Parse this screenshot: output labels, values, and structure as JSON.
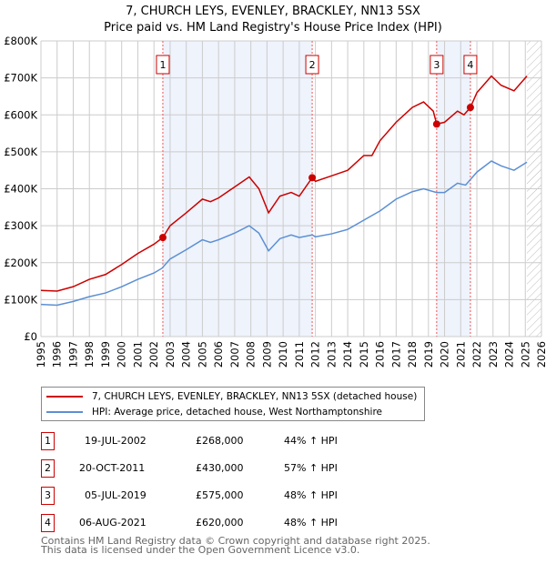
{
  "title": "7, CHURCH LEYS, EVENLEY, BRACKLEY, NN13 5SX",
  "subtitle": "Price paid vs. HM Land Registry's House Price Index (HPI)",
  "chart_data": {
    "type": "line",
    "xlim": [
      1995,
      2026
    ],
    "ylim": [
      0,
      800000
    ],
    "yticks": [
      {
        "v": 0,
        "l": "£0"
      },
      {
        "v": 100000,
        "l": "£100K"
      },
      {
        "v": 200000,
        "l": "£200K"
      },
      {
        "v": 300000,
        "l": "£300K"
      },
      {
        "v": 400000,
        "l": "£400K"
      },
      {
        "v": 500000,
        "l": "£500K"
      },
      {
        "v": 600000,
        "l": "£600K"
      },
      {
        "v": 700000,
        "l": "£700K"
      },
      {
        "v": 800000,
        "l": "£800K"
      }
    ],
    "xticks": [
      "1995",
      "1996",
      "1997",
      "1998",
      "1999",
      "2000",
      "2001",
      "2002",
      "2003",
      "2004",
      "2005",
      "2006",
      "2007",
      "2008",
      "2009",
      "2010",
      "2011",
      "2012",
      "2013",
      "2014",
      "2015",
      "2016",
      "2017",
      "2018",
      "2019",
      "2020",
      "2021",
      "2022",
      "2023",
      "2024",
      "2025",
      "2026"
    ],
    "forecast_from": 2025.1,
    "shaded": [
      [
        2002.55,
        2011.8
      ],
      [
        2019.51,
        2021.6
      ]
    ],
    "series": [
      {
        "name": "7, CHURCH LEYS, EVENLEY, BRACKLEY, NN13 5SX (detached house)",
        "color": "#cc0000",
        "x": [
          1995,
          1996,
          1997,
          1998,
          1999,
          2000,
          2001,
          2002,
          2002.55,
          2003,
          2004,
          2005,
          2005.5,
          2006,
          2007,
          2007.9,
          2008.5,
          2009.1,
          2009.8,
          2010.5,
          2011,
          2011.8,
          2012,
          2013,
          2014,
          2015,
          2015.5,
          2016,
          2017,
          2018,
          2018.7,
          2019.3,
          2019.51,
          2020,
          2020.8,
          2021.2,
          2021.6,
          2022,
          2022.9,
          2023.5,
          2024.3,
          2025.1
        ],
        "y": [
          125000,
          123000,
          135000,
          155000,
          168000,
          195000,
          225000,
          250000,
          268000,
          300000,
          335000,
          372000,
          365000,
          375000,
          405000,
          432000,
          400000,
          335000,
          380000,
          390000,
          380000,
          430000,
          420000,
          435000,
          450000,
          490000,
          490000,
          530000,
          580000,
          620000,
          635000,
          610000,
          575000,
          580000,
          610000,
          600000,
          620000,
          660000,
          705000,
          680000,
          665000,
          705000
        ]
      },
      {
        "name": "HPI: Average price, detached house, West Northamptonshire",
        "color": "#5b8fd4",
        "x": [
          1995,
          1996,
          1997,
          1998,
          1999,
          2000,
          2001,
          2002,
          2002.5,
          2003,
          2004,
          2005,
          2005.5,
          2006,
          2007,
          2007.9,
          2008.5,
          2009.1,
          2009.8,
          2010.5,
          2011,
          2011.8,
          2012,
          2013,
          2014,
          2015,
          2016,
          2017,
          2018,
          2018.7,
          2019.5,
          2020,
          2020.8,
          2021.3,
          2022,
          2022.9,
          2023.5,
          2024.3,
          2025.1
        ],
        "y": [
          87000,
          85000,
          95000,
          108000,
          118000,
          135000,
          155000,
          172000,
          185000,
          210000,
          235000,
          262000,
          255000,
          262000,
          280000,
          300000,
          280000,
          232000,
          265000,
          275000,
          268000,
          275000,
          270000,
          278000,
          290000,
          315000,
          340000,
          372000,
          392000,
          400000,
          390000,
          390000,
          415000,
          410000,
          445000,
          475000,
          462000,
          450000,
          472000
        ]
      }
    ],
    "sales": [
      {
        "n": "1",
        "x": 2002.55,
        "y": 268000,
        "date": "19-JUL-2002",
        "price": "£268,000",
        "hpi": "44% ↑ HPI"
      },
      {
        "n": "2",
        "x": 2011.8,
        "y": 430000,
        "date": "20-OCT-2011",
        "price": "£430,000",
        "hpi": "57% ↑ HPI"
      },
      {
        "n": "3",
        "x": 2019.51,
        "y": 575000,
        "date": "05-JUL-2019",
        "price": "£575,000",
        "hpi": "48% ↑ HPI"
      },
      {
        "n": "4",
        "x": 2021.6,
        "y": 620000,
        "date": "06-AUG-2021",
        "price": "£620,000",
        "hpi": "48% ↑ HPI"
      }
    ]
  },
  "footer1": "Contains HM Land Registry data © Crown copyright and database right 2025.",
  "footer2": "This data is licensed under the Open Government Licence v3.0."
}
